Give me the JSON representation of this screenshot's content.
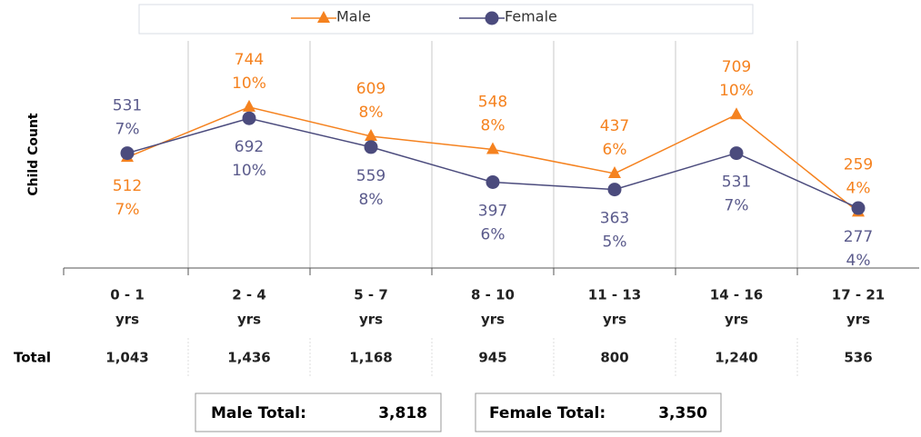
{
  "chart_data": {
    "type": "line",
    "y_axis_label": "Child Count",
    "categories": [
      [
        "0 - 1",
        "yrs"
      ],
      [
        "2 - 4",
        "yrs"
      ],
      [
        "5 - 7",
        "yrs"
      ],
      [
        "8 - 10",
        "yrs"
      ],
      [
        "11 - 13",
        "yrs"
      ],
      [
        "14 - 16",
        "yrs"
      ],
      [
        "17 - 21",
        "yrs"
      ]
    ],
    "series": [
      {
        "name": "Male",
        "color": "#f5821f",
        "marker": "triangle",
        "values": [
          512,
          744,
          609,
          548,
          437,
          709,
          259
        ],
        "percent_labels": [
          "7%",
          "10%",
          "8%",
          "8%",
          "6%",
          "10%",
          "4%"
        ]
      },
      {
        "name": "Female",
        "color": "#4b4b7d",
        "marker": "circle",
        "values": [
          531,
          692,
          559,
          397,
          363,
          531,
          277
        ],
        "percent_labels": [
          "7%",
          "10%",
          "8%",
          "6%",
          "5%",
          "7%",
          "4%"
        ]
      }
    ],
    "ylim": [
      0,
      1050
    ],
    "total_row_label": "Total",
    "totals": [
      1043,
      1436,
      1168,
      945,
      800,
      1240,
      536
    ],
    "total_labels": [
      "1,043",
      "1,436",
      "1,168",
      "945",
      "800",
      "1,240",
      "536"
    ],
    "summary": [
      {
        "label": "Male Total:",
        "value": 3818,
        "value_label": "3,818"
      },
      {
        "label": "Female Total:",
        "value": 3350,
        "value_label": "3,350"
      }
    ]
  }
}
